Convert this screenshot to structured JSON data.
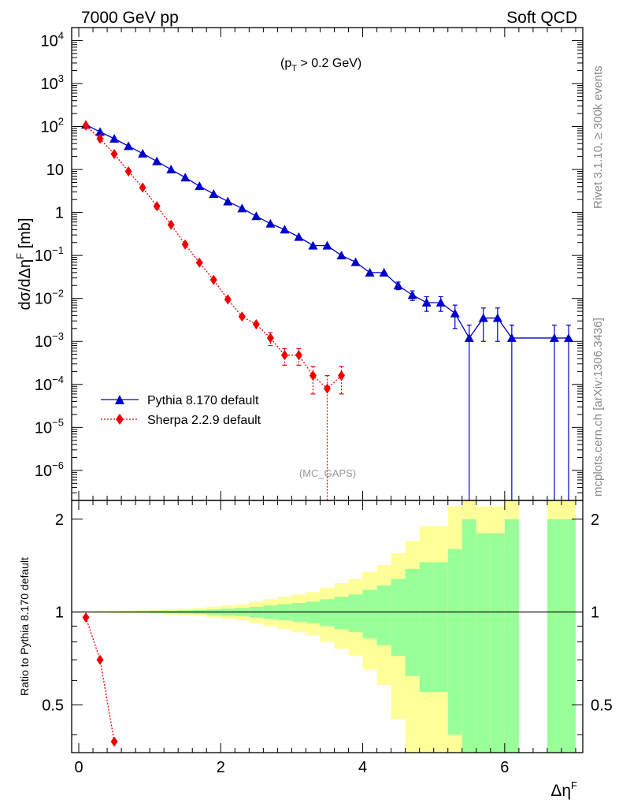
{
  "header": {
    "left": "7000 GeV pp",
    "right": "Soft QCD"
  },
  "side": {
    "rivet": "Rivet 3.1.10, ≥ 300k events",
    "mcplots": "mcplots.cern.ch [arXiv:1306.3436]"
  },
  "annotations": {
    "cut": "(p",
    "cut_sub": "T",
    "cut_rest": " > 0.2 GeV)",
    "watermark": "(MC_GAPS)"
  },
  "chart_data": [
    {
      "type": "line",
      "panel": "main",
      "ylabel": "dσ/dΔη",
      "ylabel_sup": "F",
      "ylabel_unit": " [mb]",
      "xlabel": "Δη",
      "xlabel_sup": "F",
      "yscale": "log",
      "xlim": [
        -0.1,
        7.1
      ],
      "ylim": [
        2e-07,
        20000
      ],
      "grid": false,
      "legend_position": "bottom-left",
      "x_ticks": [
        "0",
        "2",
        "4",
        "6"
      ],
      "y_ticks": [
        {
          "base": "10",
          "exp": "4"
        },
        {
          "base": "10",
          "exp": "3"
        },
        {
          "base": "10",
          "exp": "2"
        },
        {
          "base": "10",
          "exp": ""
        },
        {
          "base": "1",
          "exp": ""
        },
        {
          "base": "10",
          "exp": "−1"
        },
        {
          "base": "10",
          "exp": "−2"
        },
        {
          "base": "10",
          "exp": "−3"
        },
        {
          "base": "10",
          "exp": "−4"
        },
        {
          "base": "10",
          "exp": "−5"
        },
        {
          "base": "10",
          "exp": "−6"
        }
      ],
      "series": [
        {
          "name": "Pythia 8.170 default",
          "color": "#0000cc",
          "marker": "triangle",
          "line": "solid",
          "x": [
            0.1,
            0.3,
            0.5,
            0.7,
            0.9,
            1.1,
            1.3,
            1.5,
            1.7,
            1.9,
            2.1,
            2.3,
            2.5,
            2.7,
            2.9,
            3.1,
            3.3,
            3.5,
            3.7,
            3.9,
            4.1,
            4.3,
            4.5,
            4.7,
            4.9,
            5.1,
            5.3,
            5.5,
            5.7,
            5.9,
            6.1,
            6.7,
            6.9
          ],
          "y": [
            110,
            75,
            52,
            35,
            23.5,
            15.5,
            10,
            6.5,
            4.1,
            2.7,
            1.8,
            1.25,
            0.82,
            0.55,
            0.4,
            0.27,
            0.17,
            0.17,
            0.1,
            0.07,
            0.04,
            0.04,
            0.02,
            0.012,
            0.008,
            0.008,
            0.0045,
            0.0012,
            0.0035,
            0.0035,
            0.0012,
            0.0012,
            0.0012
          ],
          "err_up": [
            0,
            0,
            0,
            0,
            0,
            0,
            0,
            0,
            0,
            0,
            0,
            0,
            0,
            0,
            0,
            0,
            0,
            0,
            0,
            0,
            0,
            0,
            0.004,
            0.003,
            0.003,
            0.003,
            0.0025,
            0.0012,
            0.0025,
            0.0025,
            0.0012,
            0.0012,
            0.0012
          ],
          "err_down": [
            0,
            0,
            0,
            0,
            0,
            0,
            0,
            0,
            0,
            0,
            0,
            0,
            0,
            0,
            0,
            0,
            0,
            0,
            0,
            0,
            0,
            0,
            0.004,
            0.003,
            0.003,
            0.003,
            0.0025,
            0.0012,
            0.0025,
            0.0025,
            0.0012,
            0.0012,
            0.0012
          ]
        },
        {
          "name": "Sherpa 2.2.9 default",
          "color": "#ee0000",
          "marker": "diamond",
          "line": "dotted",
          "x": [
            0.1,
            0.3,
            0.5,
            0.7,
            0.9,
            1.1,
            1.3,
            1.5,
            1.7,
            1.9,
            2.1,
            2.3,
            2.5,
            2.7,
            2.9,
            3.1,
            3.3,
            3.5,
            3.7
          ],
          "y": [
            105,
            52,
            23,
            9,
            3.8,
            1.4,
            0.52,
            0.18,
            0.068,
            0.027,
            0.0095,
            0.0038,
            0.0025,
            0.0012,
            0.00048,
            0.00048,
            0.00016,
            8e-05,
            0.00016
          ],
          "err_up": [
            0,
            0,
            0,
            0,
            0,
            0,
            0,
            0,
            0,
            0,
            0,
            0,
            0,
            0.0004,
            0.0002,
            0.0002,
            0.0001,
            8e-05,
            0.0001
          ],
          "err_down": [
            0,
            0,
            0,
            0,
            0,
            0,
            0,
            0,
            0,
            0,
            0,
            0,
            0,
            0.0004,
            0.0002,
            0.0002,
            0.0001,
            8e-05,
            0.0001
          ]
        }
      ]
    },
    {
      "type": "area",
      "panel": "ratio",
      "ylabel": "Ratio to Pythia 8.170 default",
      "xlabel": "Δη",
      "xlabel_sup": "F",
      "ylim": [
        0.35,
        2.3
      ],
      "xlim": [
        -0.1,
        7.1
      ],
      "x_ticks": [
        "0",
        "2",
        "4",
        "6"
      ],
      "y_ticks": [
        "0.5",
        "1",
        "2"
      ],
      "bands": {
        "bin_edges": [
          0.0,
          0.2,
          0.4,
          0.6,
          0.8,
          1.0,
          1.2,
          1.4,
          1.6,
          1.8,
          2.0,
          2.2,
          2.4,
          2.6,
          2.8,
          3.0,
          3.2,
          3.4,
          3.6,
          3.8,
          4.0,
          4.2,
          4.4,
          4.6,
          4.8,
          5.0,
          5.2,
          5.4,
          5.6,
          5.8,
          6.0,
          6.2,
          6.6,
          6.8,
          7.0
        ],
        "inner_half_width": [
          0.002,
          0.003,
          0.004,
          0.005,
          0.006,
          0.008,
          0.01,
          0.012,
          0.015,
          0.02,
          0.025,
          0.03,
          0.04,
          0.05,
          0.06,
          0.07,
          0.08,
          0.1,
          0.12,
          0.14,
          0.18,
          0.22,
          0.28,
          0.38,
          0.45,
          0.45,
          0.6,
          1.0,
          0.8,
          0.8,
          1.0,
          null,
          1.0,
          1.0
        ],
        "outer_half_width": [
          0.004,
          0.006,
          0.008,
          0.01,
          0.012,
          0.016,
          0.02,
          0.024,
          0.03,
          0.04,
          0.05,
          0.06,
          0.08,
          0.1,
          0.12,
          0.14,
          0.16,
          0.2,
          0.24,
          0.28,
          0.35,
          0.42,
          0.55,
          0.7,
          0.9,
          0.9,
          1.2,
          1.4,
          1.2,
          1.2,
          1.4,
          null,
          1.4,
          1.4
        ],
        "inner_color": "#99ff99",
        "outer_color": "#ffff99"
      },
      "series": [
        {
          "name": "Sherpa 2.2.9 default",
          "color": "#ee0000",
          "marker": "diamond",
          "line": "dotted",
          "x": [
            0.1,
            0.3,
            0.5
          ],
          "y": [
            0.96,
            0.7,
            0.38
          ]
        }
      ]
    }
  ]
}
